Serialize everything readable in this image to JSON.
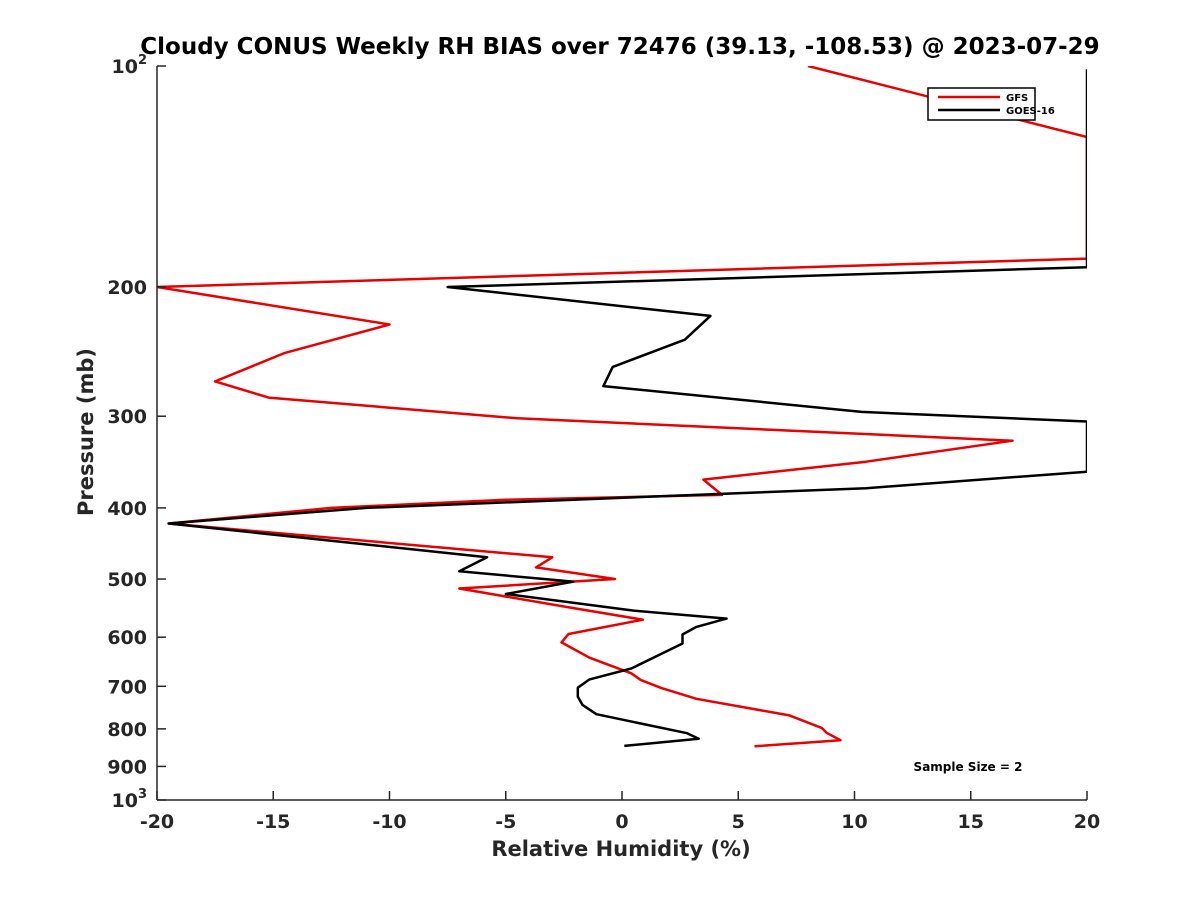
{
  "chart_data": {
    "type": "line",
    "title": "Cloudy CONUS Weekly RH BIAS over 72476 (39.13, -108.53) @ 2023-07-29",
    "xlabel": "Relative Humidity (%)",
    "ylabel": "Pressure (mb)",
    "xlim": [
      -20,
      20
    ],
    "ylim": [
      100,
      1000
    ],
    "y_scale": "log",
    "y_reversed": true,
    "xticks": [
      -20,
      -15,
      -10,
      -5,
      0,
      5,
      10,
      15,
      20
    ],
    "yticks": [
      {
        "value": 100,
        "label": "10",
        "sup": "2"
      },
      {
        "value": 200,
        "label": "200"
      },
      {
        "value": 300,
        "label": "300"
      },
      {
        "value": 400,
        "label": "400"
      },
      {
        "value": 500,
        "label": "500"
      },
      {
        "value": 600,
        "label": "600"
      },
      {
        "value": 700,
        "label": "700"
      },
      {
        "value": 800,
        "label": "800"
      },
      {
        "value": 900,
        "label": "900"
      },
      {
        "value": 1000,
        "label": "10",
        "sup": "3"
      }
    ],
    "grid": false,
    "legend_position": "top-right",
    "annotation": "Sample Size = 2",
    "series": [
      {
        "name": "GFS",
        "color": "#e60000",
        "points": [
          [
            8,
            100
          ],
          [
            20,
            125
          ],
          [
            20,
            183
          ],
          [
            -20,
            200
          ],
          [
            -10,
            225
          ],
          [
            -14.5,
            246
          ],
          [
            -17.5,
            269
          ],
          [
            -15.2,
            283
          ],
          [
            -4.5,
            302
          ],
          [
            16.8,
            324
          ],
          [
            10.5,
            346
          ],
          [
            3.5,
            366
          ],
          [
            4.3,
            384
          ],
          [
            -5,
            390
          ],
          [
            -12.5,
            400
          ],
          [
            -19.5,
            420
          ],
          [
            -3,
            467
          ],
          [
            -3.7,
            482
          ],
          [
            -0.3,
            500
          ],
          [
            -7,
            515
          ],
          [
            -2.5,
            545
          ],
          [
            0.9,
            568
          ],
          [
            -2.3,
            594
          ],
          [
            -2.6,
            610
          ],
          [
            -1.4,
            640
          ],
          [
            0.4,
            672
          ],
          [
            0.8,
            686
          ],
          [
            1.7,
            704
          ],
          [
            3.2,
            728
          ],
          [
            7.2,
            767
          ],
          [
            8.6,
            798
          ],
          [
            8.8,
            810
          ],
          [
            9.4,
            829
          ],
          [
            5.7,
            845
          ]
        ]
      },
      {
        "name": "GOES-16",
        "color": "#000000",
        "points": [
          [
            20,
            101
          ],
          [
            20,
            188
          ],
          [
            -7.5,
            200
          ],
          [
            3.8,
            219
          ],
          [
            2.7,
            236
          ],
          [
            -0.4,
            257
          ],
          [
            -0.8,
            273
          ],
          [
            10.3,
            296
          ],
          [
            20,
            305
          ],
          [
            20,
            357
          ],
          [
            10.5,
            376
          ],
          [
            -11,
            400
          ],
          [
            -19.5,
            420
          ],
          [
            -5.8,
            467
          ],
          [
            -7,
            488
          ],
          [
            -2.1,
            504
          ],
          [
            -5,
            524
          ],
          [
            0.5,
            552
          ],
          [
            4.5,
            566
          ],
          [
            3.2,
            581
          ],
          [
            2.6,
            595
          ],
          [
            2.6,
            612
          ],
          [
            0.4,
            662
          ],
          [
            -1.4,
            685
          ],
          [
            -1.9,
            703
          ],
          [
            -1.9,
            723
          ],
          [
            -1.7,
            742
          ],
          [
            -1.1,
            764
          ],
          [
            2.8,
            811
          ],
          [
            3.3,
            825
          ],
          [
            0.1,
            844
          ]
        ]
      }
    ]
  }
}
